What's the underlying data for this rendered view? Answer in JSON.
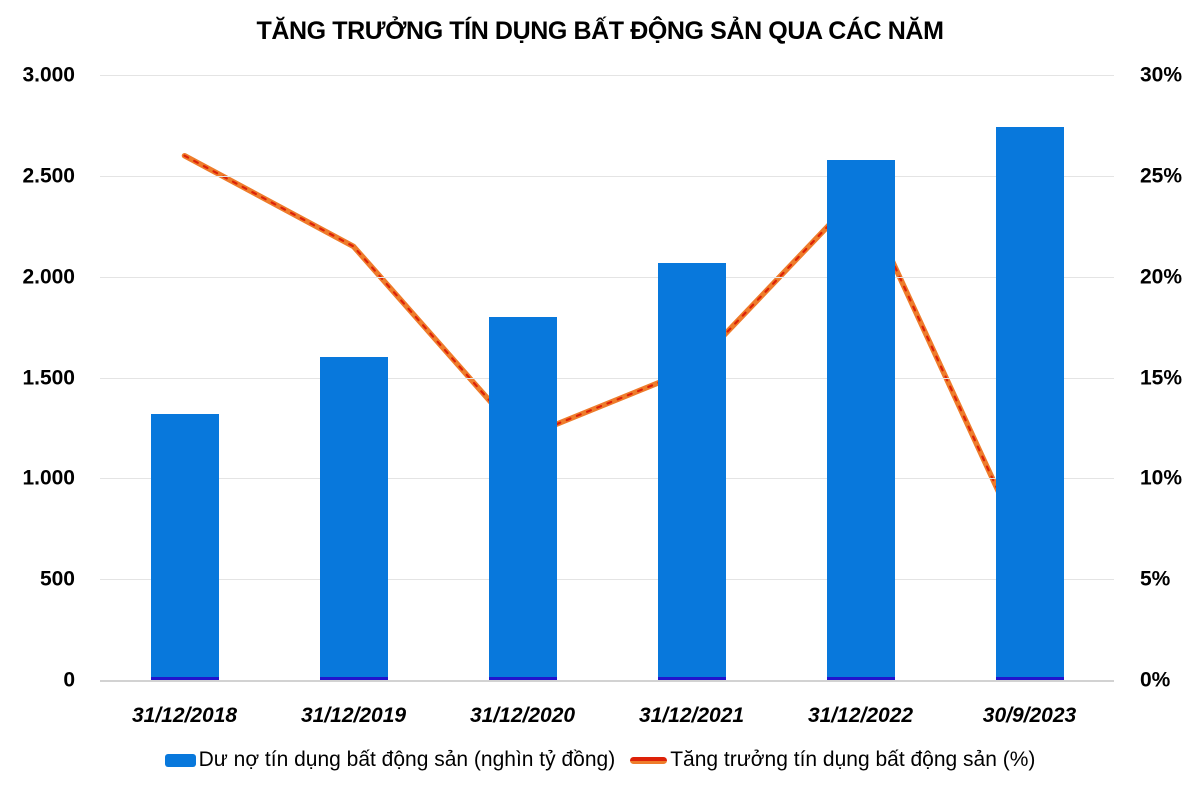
{
  "chart_data": {
    "type": "combo",
    "title": "TĂNG TRƯỞNG TÍN DỤNG BẤT ĐỘNG SẢN QUA CÁC NĂM",
    "categories": [
      "31/12/2018",
      "31/12/2019",
      "31/12/2020",
      "31/12/2021",
      "31/12/2022",
      "30/9/2023"
    ],
    "series": [
      {
        "name": "Dư nợ tín dụng bất động sản (nghìn tỷ đồng)",
        "type": "bar",
        "axis": "left",
        "color": "#0878dc",
        "base_color": "#2213cd",
        "values": [
          1320,
          1600,
          1800,
          2070,
          2580,
          2740
        ]
      },
      {
        "name": "Tăng trưởng tín dụng bất động sản (%)",
        "type": "line",
        "axis": "right",
        "color": "#ee7c2b",
        "dot_color": "#dd2108",
        "values": [
          26,
          21.5,
          12,
          15.4,
          24.2,
          6
        ]
      }
    ],
    "left_axis": {
      "min": 0,
      "max": 3000,
      "step": 500,
      "ticks": [
        "3.000",
        "2.500",
        "2.000",
        "1.500",
        "1.000",
        "500",
        "0"
      ]
    },
    "right_axis": {
      "min": 0,
      "max": 30,
      "step": 5,
      "ticks": [
        "30%",
        "25%",
        "20%",
        "15%",
        "10%",
        "5%",
        "0%"
      ]
    },
    "grid": true,
    "grid_color": "#e4e4e4",
    "legend_position": "bottom"
  }
}
